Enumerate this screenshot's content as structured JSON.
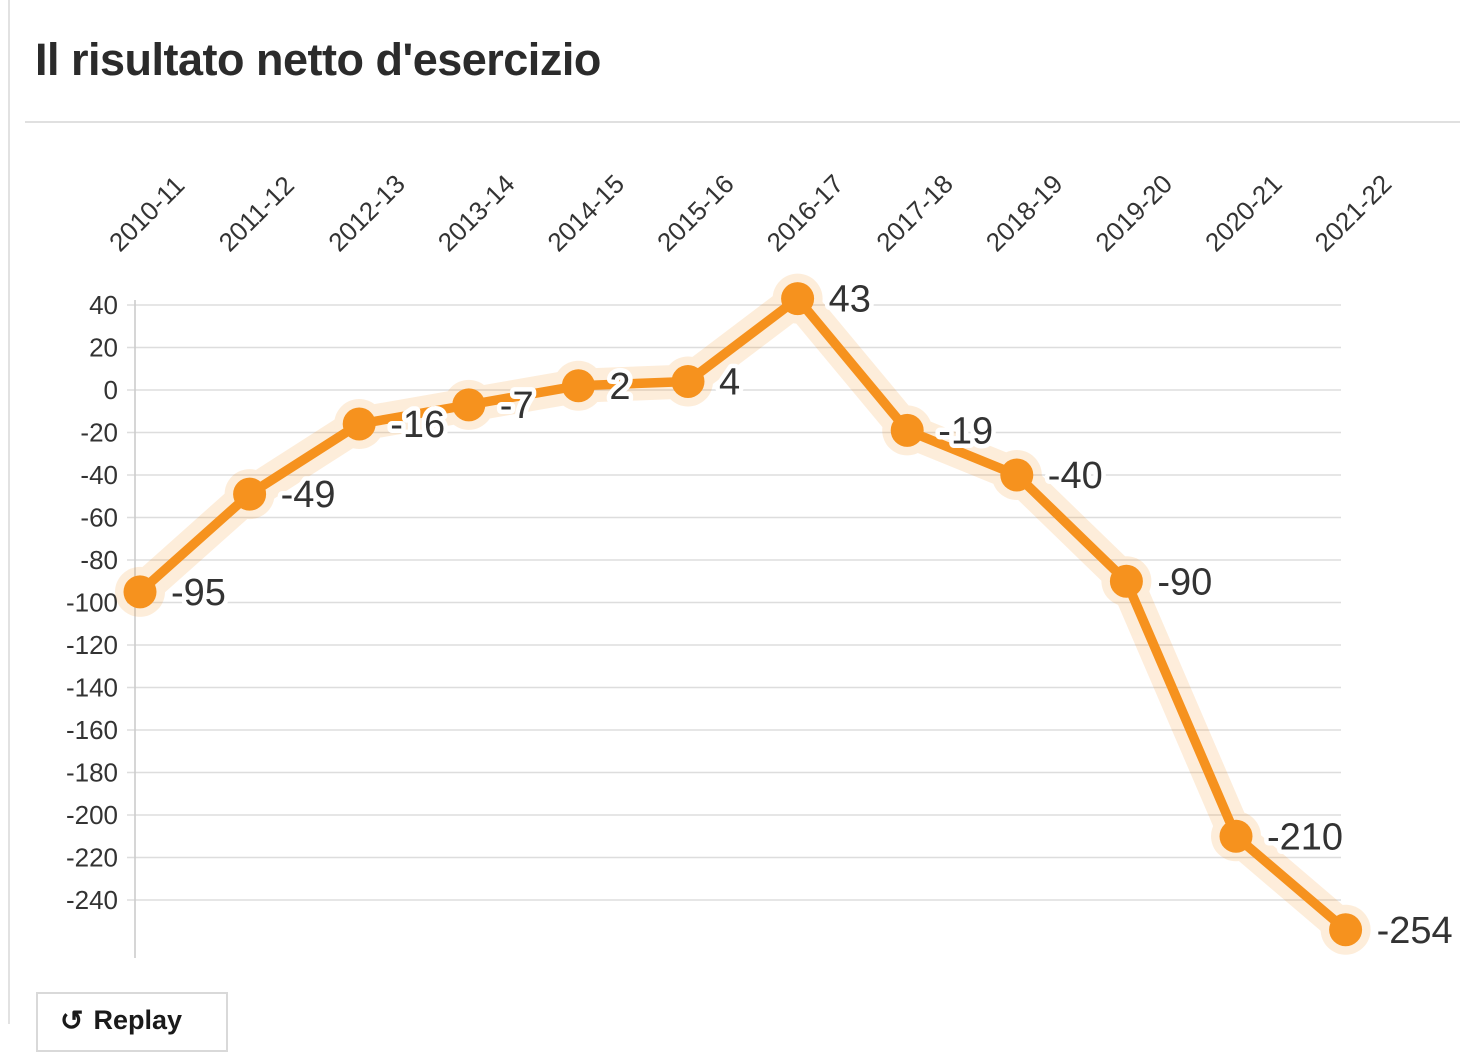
{
  "page": {
    "title": "Il risultato netto d'esercizio"
  },
  "controls": {
    "replay": {
      "icon_glyph": "↺",
      "label": "Replay"
    }
  },
  "chart_data": {
    "type": "line",
    "title": "Il risultato netto d'esercizio",
    "categories": [
      "2010-11",
      "2011-12",
      "2012-13",
      "2013-14",
      "2014-15",
      "2015-16",
      "2016-17",
      "2017-18",
      "2018-19",
      "2019-20",
      "2020-21",
      "2021-22"
    ],
    "values": [
      -95,
      -49,
      -16,
      -7,
      2,
      4,
      43,
      -19,
      -40,
      -90,
      -210,
      -254
    ],
    "xlabel": "",
    "ylabel": "",
    "x_axis_position": "top",
    "x_label_rotation_deg": -45,
    "ylim": [
      -260,
      50
    ],
    "yticks": [
      40,
      20,
      0,
      -20,
      -40,
      -60,
      -80,
      -100,
      -120,
      -140,
      -160,
      -180,
      -200,
      -220,
      -240
    ],
    "grid": true,
    "legend": "none",
    "data_labels_shown": true,
    "colors": {
      "line": "#f6921e",
      "marker": "#f6921e",
      "halo": "#f6921e",
      "halo_opacity": 0.16,
      "grid": "#dddddd",
      "axis": "#cccccc",
      "tick_text": "#333333",
      "data_label_text": "#333333",
      "title_text": "#2b2b2b"
    }
  }
}
